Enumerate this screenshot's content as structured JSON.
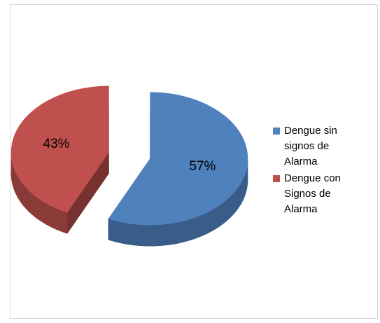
{
  "chart_data": {
    "type": "pie3d",
    "categories": [
      "Dengue sin signos de Alarma",
      "Dengue con Signos de Alarma"
    ],
    "values": [
      57,
      43
    ],
    "value_labels": [
      "57%",
      "43%"
    ],
    "colors": [
      "#4f81bd",
      "#c0504d"
    ],
    "legend": "right"
  }
}
